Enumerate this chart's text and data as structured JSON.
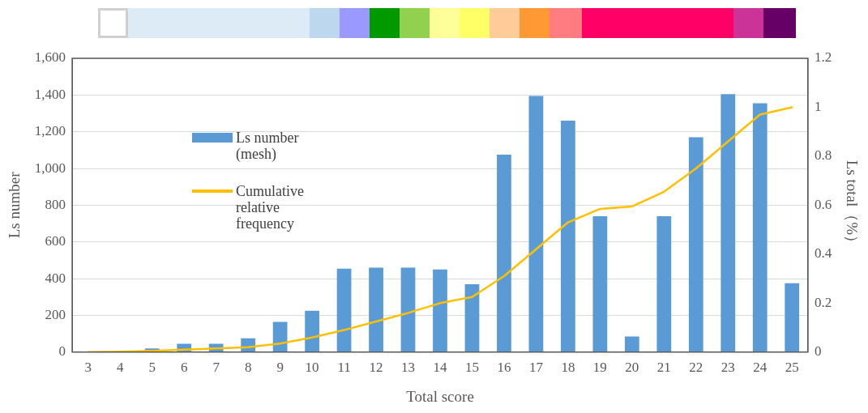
{
  "chart_data": {
    "type": "bar",
    "xlabel": "Total score",
    "ylabel": "Ls number",
    "y2label": "Ls total（%）",
    "categories": [
      "3",
      "4",
      "5",
      "6",
      "7",
      "8",
      "9",
      "10",
      "11",
      "12",
      "13",
      "14",
      "15",
      "16",
      "17",
      "18",
      "19",
      "20",
      "21",
      "22",
      "23",
      "24",
      "25"
    ],
    "series": [
      {
        "name": "Ls number\n(mesh)",
        "color": "#5b9bd5",
        "values": [
          null,
          0,
          20,
          45,
          45,
          75,
          165,
          225,
          455,
          460,
          460,
          450,
          370,
          1075,
          1395,
          1260,
          740,
          85,
          740,
          1170,
          1405,
          1355,
          375
        ]
      },
      {
        "name": "Cumulative\nrelative\nfrequency",
        "type": "line",
        "axis": "y2",
        "color": "#ffc000",
        "values": [
          0,
          0.002,
          0.005,
          0.01,
          0.015,
          0.02,
          0.035,
          0.06,
          0.09,
          0.125,
          0.16,
          0.2,
          0.225,
          0.31,
          0.42,
          0.53,
          0.585,
          0.595,
          0.655,
          0.75,
          0.86,
          0.97,
          1.0
        ]
      }
    ],
    "ylim": [
      0,
      1600
    ],
    "yticks": [
      0,
      200,
      400,
      600,
      800,
      {
        "value": 1000,
        "label": "1,000"
      },
      {
        "value": 1200,
        "label": "1,200"
      },
      {
        "value": 1400,
        "label": "1,400"
      },
      {
        "value": 1600,
        "label": "1,600"
      }
    ],
    "y2lim": [
      0,
      1.2
    ],
    "y2ticks": [
      0,
      0.2,
      0.4,
      0.6,
      0.8,
      1,
      1.2
    ],
    "grid": "y",
    "legend": "left",
    "marker": "none",
    "line_style": "solid"
  }
}
